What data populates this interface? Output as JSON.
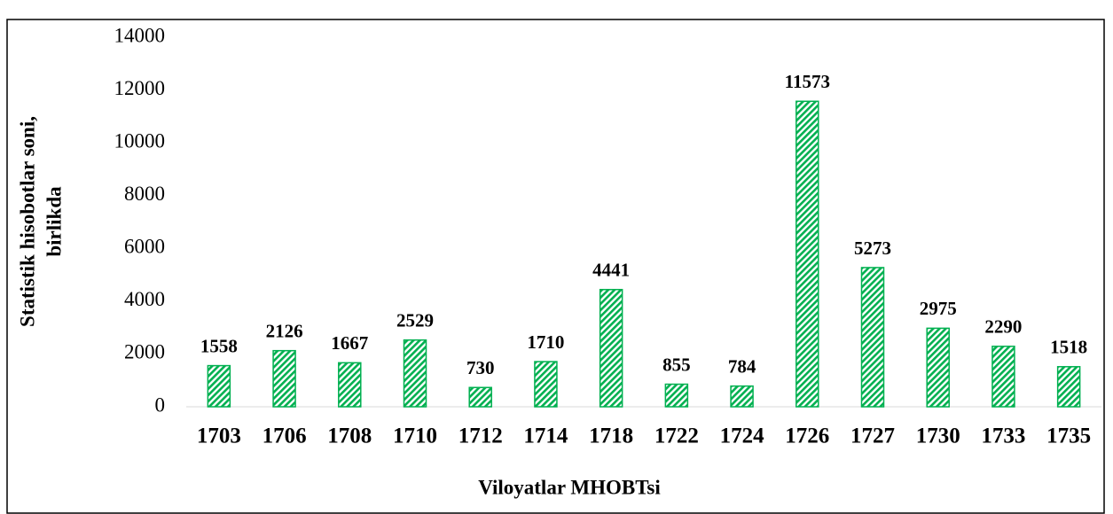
{
  "chart_data": {
    "type": "bar",
    "categories": [
      "1703",
      "1706",
      "1708",
      "1710",
      "1712",
      "1714",
      "1718",
      "1722",
      "1724",
      "1726",
      "1727",
      "1730",
      "1733",
      "1735"
    ],
    "values": [
      1558,
      2126,
      1667,
      2529,
      730,
      1710,
      4441,
      855,
      784,
      11573,
      5273,
      2975,
      2290,
      1518
    ],
    "color": "#00b050",
    "xlabel": "Viloyatlar MHOBTsi",
    "ylabel": [
      "Statistik hisobotlar soni,",
      "birlikda"
    ],
    "ylim": [
      0,
      14000
    ],
    "yticks": [
      0,
      2000,
      4000,
      6000,
      8000,
      10000,
      12000,
      14000
    ],
    "grid": false,
    "data_labels": true
  }
}
